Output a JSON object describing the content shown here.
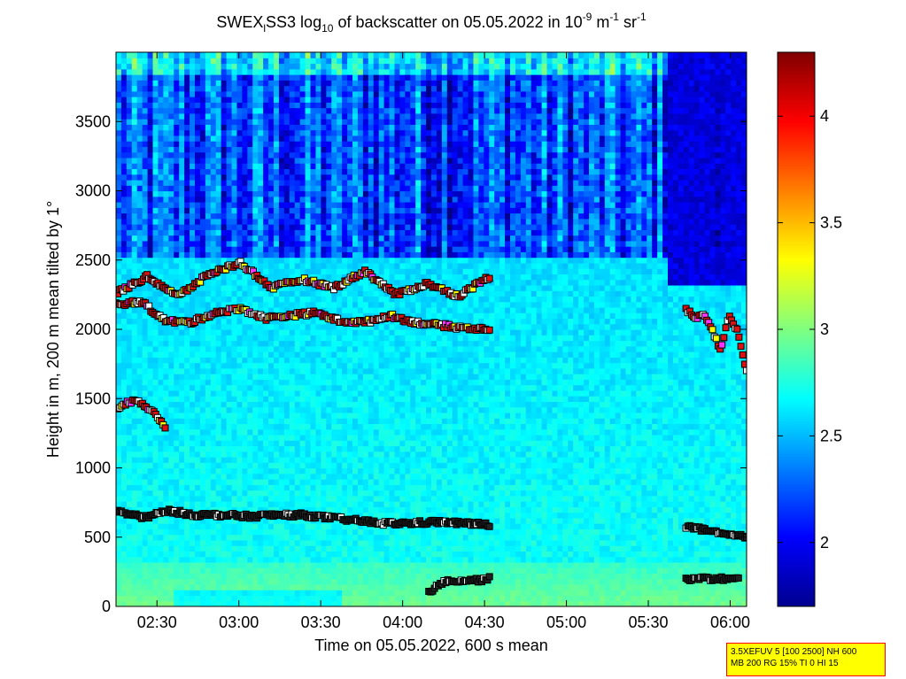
{
  "chart_data": {
    "type": "heatmap",
    "title_parts": {
      "t1": "SWEX",
      "t1sub": "l",
      "t2": "SS3 log",
      "t2sub": "10",
      "t3": " of backscatter on 05.05.2022 in 10",
      "sup1": "-9",
      "t4": " m",
      "sup2": "-1",
      "t5": " sr",
      "sup3": "-1"
    },
    "xlabel": "Time on 05.05.2022, 600 s mean",
    "ylabel": "Height in m, 200 m mean tilted by 1°",
    "x_range_hours": [
      2.25,
      6.1
    ],
    "x_ticks": [
      {
        "label": "02:30",
        "value": 2.5
      },
      {
        "label": "03:00",
        "value": 3.0
      },
      {
        "label": "03:30",
        "value": 3.5
      },
      {
        "label": "04:00",
        "value": 4.0
      },
      {
        "label": "04:30",
        "value": 4.5
      },
      {
        "label": "05:00",
        "value": 5.0
      },
      {
        "label": "05:30",
        "value": 5.5
      },
      {
        "label": "06:00",
        "value": 6.0
      }
    ],
    "y_range": [
      0,
      4000
    ],
    "y_ticks": [
      "0",
      "500",
      "1000",
      "1500",
      "2000",
      "2500",
      "3000",
      "3500"
    ],
    "colorbar": {
      "range": [
        1.7,
        4.3
      ],
      "ticks": [
        "2",
        "2.5",
        "3",
        "3.5",
        "4"
      ],
      "colormap": "jet"
    },
    "field": {
      "surface": {
        "height": 300,
        "value": 2.95
      },
      "boundary_layer": {
        "value": 2.7
      },
      "upper": {
        "value": 2.2
      },
      "dark_gap_after_hour": 5.6
    },
    "layers": [
      {
        "name": "aerosol-layer",
        "start": 2.25,
        "end": 4.53,
        "heights": [
          690,
          640,
          690,
          660,
          660,
          650,
          660,
          660,
          640,
          620,
          600,
          600,
          610,
          600,
          590
        ]
      },
      {
        "name": "aerosol-layer-late",
        "start": 5.73,
        "end": 6.1,
        "heights": [
          580,
          560,
          540,
          520,
          510,
          500
        ]
      },
      {
        "name": "low-layer",
        "start": 4.16,
        "end": 4.53,
        "heights": [
          110,
          150,
          195,
          185,
          190,
          190,
          200
        ]
      },
      {
        "name": "low-layer-late",
        "start": 5.73,
        "end": 6.05,
        "heights": [
          200,
          200,
          200,
          195
        ]
      },
      {
        "name": "upper-cloud",
        "start": 2.25,
        "end": 4.53,
        "heights": [
          2180,
          2200,
          2060,
          2050,
          2120,
          2150,
          2080,
          2100,
          2120,
          2060,
          2050,
          2100,
          2050,
          2030,
          2010,
          2000
        ]
      },
      {
        "name": "upper-cloud-top",
        "start": 2.25,
        "end": 4.53,
        "heights": [
          2260,
          2380,
          2240,
          2400,
          2480,
          2300,
          2360,
          2300,
          2420,
          2250,
          2330,
          2240,
          2380
        ]
      },
      {
        "name": "cloud-late",
        "start": 5.73,
        "end": 6.1,
        "heights": [
          2150,
          2080,
          2120,
          2000,
          1850,
          2100,
          1980,
          1700
        ]
      },
      {
        "name": "mid-patch",
        "start": 2.25,
        "end": 2.55,
        "heights": [
          1420,
          1460,
          1500,
          1450,
          1380,
          1300
        ]
      }
    ],
    "scatter_colors": {
      "white": "#ffffff",
      "red": "#dd1111",
      "yellow": "#ffff00",
      "magenta": "#ff33ff",
      "edge": "#000000"
    }
  },
  "info_box": {
    "line1": "3.5XEFUV 5 [100 2500] NH 600",
    "line2": "MB 200 RG 15% TI 0 HI 15"
  }
}
